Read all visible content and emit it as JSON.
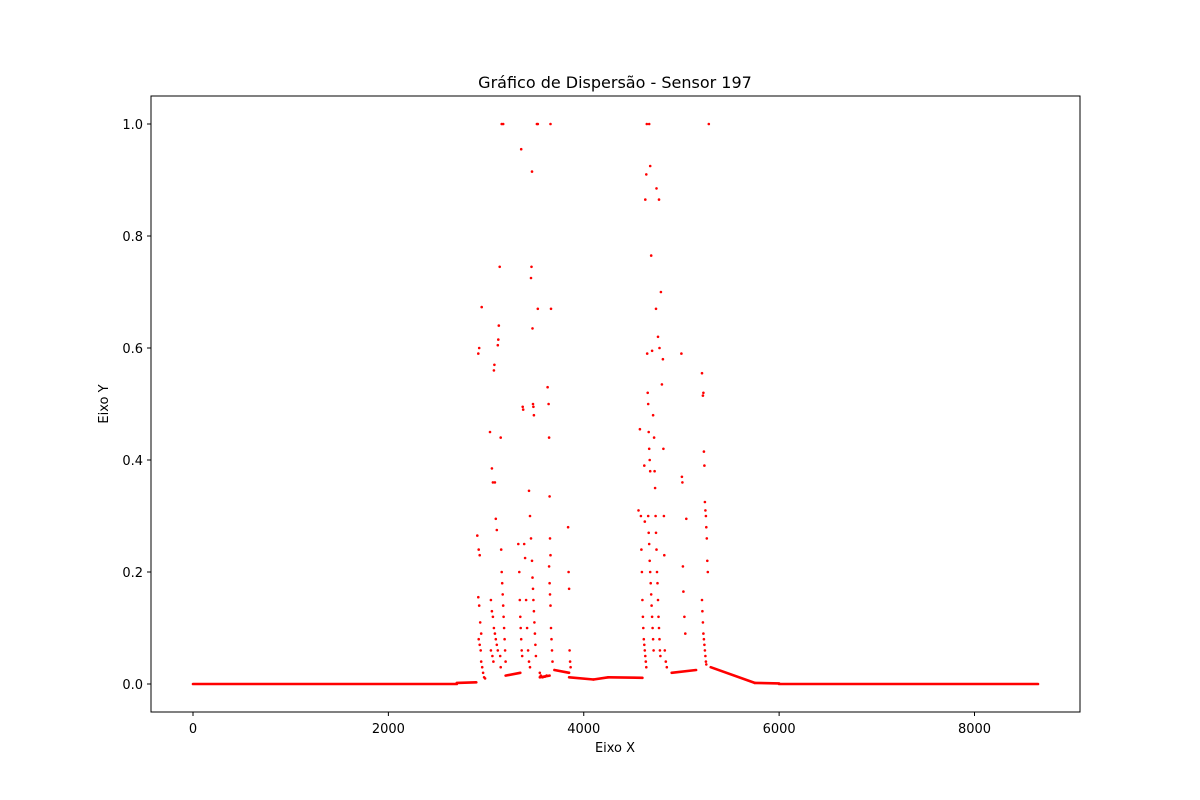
{
  "chart_data": {
    "type": "scatter",
    "title": "Gráfico de Dispersão - Sensor 197",
    "xlabel": "Eixo X",
    "ylabel": "Eixo Y",
    "xlim": [
      -430,
      9080
    ],
    "ylim": [
      -0.05,
      1.05
    ],
    "xticks": [
      0,
      2000,
      4000,
      6000,
      8000
    ],
    "xtick_labels": [
      "0",
      "2000",
      "4000",
      "6000",
      "8000"
    ],
    "yticks": [
      0.0,
      0.2,
      0.4,
      0.6,
      0.8,
      1.0
    ],
    "ytick_labels": [
      "0.0",
      "0.2",
      "0.4",
      "0.6",
      "0.8",
      "1.0"
    ],
    "grid": false,
    "marker_color": "#ff0000",
    "baseline_segments": [
      {
        "x": [
          0,
          2700
        ],
        "y": [
          0.0,
          0.0
        ]
      },
      {
        "x": [
          2700,
          2900
        ],
        "y": [
          0.002,
          0.003
        ]
      },
      {
        "x": [
          3200,
          3350
        ],
        "y": [
          0.015,
          0.02
        ]
      },
      {
        "x": [
          3550,
          3650
        ],
        "y": [
          0.012,
          0.015
        ]
      },
      {
        "x": [
          3700,
          3850
        ],
        "y": [
          0.025,
          0.02
        ]
      },
      {
        "x": [
          3850,
          4100
        ],
        "y": [
          0.012,
          0.008
        ]
      },
      {
        "x": [
          4100,
          4250
        ],
        "y": [
          0.008,
          0.012
        ]
      },
      {
        "x": [
          4250,
          4600
        ],
        "y": [
          0.012,
          0.011
        ]
      },
      {
        "x": [
          4900,
          5150
        ],
        "y": [
          0.02,
          0.025
        ]
      },
      {
        "x": [
          5300,
          5750
        ],
        "y": [
          0.03,
          0.002
        ]
      },
      {
        "x": [
          5750,
          6000
        ],
        "y": [
          0.002,
          0.001
        ]
      },
      {
        "x": [
          6000,
          8650
        ],
        "y": [
          0.0,
          0.0
        ]
      }
    ],
    "points": [
      [
        2910,
        0.265
      ],
      [
        2920,
        0.59
      ],
      [
        2930,
        0.6
      ],
      [
        2925,
        0.24
      ],
      [
        2935,
        0.23
      ],
      [
        2920,
        0.155
      ],
      [
        2930,
        0.14
      ],
      [
        2940,
        0.11
      ],
      [
        2950,
        0.09
      ],
      [
        2925,
        0.08
      ],
      [
        2935,
        0.07
      ],
      [
        2945,
        0.06
      ],
      [
        2950,
        0.04
      ],
      [
        2960,
        0.03
      ],
      [
        2970,
        0.02
      ],
      [
        2980,
        0.012
      ],
      [
        2990,
        0.01
      ],
      [
        2955,
        0.673
      ],
      [
        3040,
        0.45
      ],
      [
        3060,
        0.385
      ],
      [
        3070,
        0.36
      ],
      [
        3080,
        0.56
      ],
      [
        3085,
        0.57
      ],
      [
        3090,
        0.36
      ],
      [
        3050,
        0.15
      ],
      [
        3060,
        0.13
      ],
      [
        3070,
        0.12
      ],
      [
        3080,
        0.1
      ],
      [
        3090,
        0.09
      ],
      [
        3100,
        0.08
      ],
      [
        3110,
        0.07
      ],
      [
        3120,
        0.06
      ],
      [
        3050,
        0.06
      ],
      [
        3065,
        0.05
      ],
      [
        3075,
        0.04
      ],
      [
        3100,
        0.295
      ],
      [
        3110,
        0.275
      ],
      [
        3120,
        0.605
      ],
      [
        3125,
        0.615
      ],
      [
        3130,
        0.64
      ],
      [
        3140,
        0.745
      ],
      [
        3150,
        0.44
      ],
      [
        3155,
        0.24
      ],
      [
        3160,
        0.2
      ],
      [
        3165,
        0.18
      ],
      [
        3170,
        0.16
      ],
      [
        3175,
        0.14
      ],
      [
        3180,
        0.12
      ],
      [
        3185,
        0.1
      ],
      [
        3190,
        0.08
      ],
      [
        3195,
        0.06
      ],
      [
        3200,
        0.04
      ],
      [
        3145,
        0.05
      ],
      [
        3150,
        0.03
      ],
      [
        3160,
        1.0
      ],
      [
        3175,
        1.0
      ],
      [
        3330,
        0.25
      ],
      [
        3340,
        0.2
      ],
      [
        3345,
        0.15
      ],
      [
        3350,
        0.12
      ],
      [
        3355,
        0.1
      ],
      [
        3360,
        0.08
      ],
      [
        3365,
        0.06
      ],
      [
        3370,
        0.05
      ],
      [
        3360,
        0.955
      ],
      [
        3375,
        0.495
      ],
      [
        3380,
        0.49
      ],
      [
        3390,
        0.25
      ],
      [
        3400,
        0.225
      ],
      [
        3410,
        0.15
      ],
      [
        3420,
        0.1
      ],
      [
        3430,
        0.06
      ],
      [
        3440,
        0.04
      ],
      [
        3450,
        0.03
      ],
      [
        3440,
        0.345
      ],
      [
        3450,
        0.3
      ],
      [
        3460,
        0.725
      ],
      [
        3465,
        0.745
      ],
      [
        3470,
        0.915
      ],
      [
        3475,
        0.635
      ],
      [
        3480,
        0.5
      ],
      [
        3485,
        0.495
      ],
      [
        3490,
        0.48
      ],
      [
        3460,
        0.26
      ],
      [
        3470,
        0.22
      ],
      [
        3475,
        0.19
      ],
      [
        3480,
        0.17
      ],
      [
        3485,
        0.15
      ],
      [
        3490,
        0.13
      ],
      [
        3495,
        0.11
      ],
      [
        3500,
        0.09
      ],
      [
        3505,
        0.07
      ],
      [
        3510,
        0.05
      ],
      [
        3520,
        1.0
      ],
      [
        3530,
        1.0
      ],
      [
        3530,
        0.67
      ],
      [
        3550,
        0.02
      ],
      [
        3560,
        0.015
      ],
      [
        3580,
        0.012
      ],
      [
        3600,
        0.013
      ],
      [
        3620,
        0.015
      ],
      [
        3630,
        0.53
      ],
      [
        3640,
        0.5
      ],
      [
        3645,
        0.44
      ],
      [
        3650,
        0.335
      ],
      [
        3655,
        0.26
      ],
      [
        3660,
        0.23
      ],
      [
        3645,
        0.21
      ],
      [
        3650,
        0.18
      ],
      [
        3655,
        0.16
      ],
      [
        3660,
        0.14
      ],
      [
        3665,
        0.1
      ],
      [
        3670,
        0.08
      ],
      [
        3675,
        0.06
      ],
      [
        3680,
        0.04
      ],
      [
        3660,
        1.0
      ],
      [
        3665,
        0.67
      ],
      [
        3840,
        0.28
      ],
      [
        3845,
        0.2
      ],
      [
        3850,
        0.17
      ],
      [
        3855,
        0.06
      ],
      [
        3860,
        0.04
      ],
      [
        3865,
        0.03
      ],
      [
        4560,
        0.31
      ],
      [
        4575,
        0.455
      ],
      [
        4585,
        0.3
      ],
      [
        4590,
        0.24
      ],
      [
        4595,
        0.2
      ],
      [
        4600,
        0.15
      ],
      [
        4605,
        0.12
      ],
      [
        4610,
        0.1
      ],
      [
        4615,
        0.08
      ],
      [
        4620,
        0.07
      ],
      [
        4625,
        0.06
      ],
      [
        4630,
        0.05
      ],
      [
        4635,
        0.04
      ],
      [
        4640,
        0.03
      ],
      [
        4620,
        0.39
      ],
      [
        4625,
        0.29
      ],
      [
        4630,
        0.865
      ],
      [
        4640,
        0.91
      ],
      [
        4645,
        1.0
      ],
      [
        4650,
        0.59
      ],
      [
        4655,
        0.52
      ],
      [
        4660,
        0.5
      ],
      [
        4665,
        0.45
      ],
      [
        4670,
        0.42
      ],
      [
        4675,
        0.4
      ],
      [
        4680,
        0.38
      ],
      [
        4660,
        0.3
      ],
      [
        4665,
        0.27
      ],
      [
        4670,
        0.25
      ],
      [
        4675,
        0.22
      ],
      [
        4680,
        0.2
      ],
      [
        4685,
        0.18
      ],
      [
        4690,
        0.16
      ],
      [
        4695,
        0.14
      ],
      [
        4700,
        0.12
      ],
      [
        4705,
        0.1
      ],
      [
        4710,
        0.08
      ],
      [
        4715,
        0.06
      ],
      [
        4670,
        1.0
      ],
      [
        4680,
        0.925
      ],
      [
        4690,
        0.765
      ],
      [
        4700,
        0.595
      ],
      [
        4710,
        0.48
      ],
      [
        4720,
        0.44
      ],
      [
        4725,
        0.38
      ],
      [
        4730,
        0.35
      ],
      [
        4735,
        0.3
      ],
      [
        4740,
        0.27
      ],
      [
        4745,
        0.24
      ],
      [
        4750,
        0.2
      ],
      [
        4755,
        0.18
      ],
      [
        4760,
        0.15
      ],
      [
        4765,
        0.12
      ],
      [
        4770,
        0.1
      ],
      [
        4775,
        0.08
      ],
      [
        4780,
        0.06
      ],
      [
        4785,
        0.05
      ],
      [
        4740,
        0.67
      ],
      [
        4745,
        0.885
      ],
      [
        4760,
        0.62
      ],
      [
        4770,
        0.865
      ],
      [
        4775,
        0.6
      ],
      [
        4800,
        0.535
      ],
      [
        4810,
        0.58
      ],
      [
        4815,
        0.42
      ],
      [
        4820,
        0.3
      ],
      [
        4825,
        0.23
      ],
      [
        4830,
        0.06
      ],
      [
        4840,
        0.04
      ],
      [
        4850,
        0.03
      ],
      [
        4790,
        0.7
      ],
      [
        5000,
        0.59
      ],
      [
        5005,
        0.37
      ],
      [
        5010,
        0.36
      ],
      [
        5015,
        0.21
      ],
      [
        5020,
        0.165
      ],
      [
        5030,
        0.12
      ],
      [
        5040,
        0.09
      ],
      [
        5050,
        0.295
      ],
      [
        5210,
        0.555
      ],
      [
        5220,
        0.515
      ],
      [
        5225,
        0.52
      ],
      [
        5230,
        0.415
      ],
      [
        5235,
        0.39
      ],
      [
        5240,
        0.325
      ],
      [
        5245,
        0.31
      ],
      [
        5250,
        0.3
      ],
      [
        5255,
        0.28
      ],
      [
        5260,
        0.26
      ],
      [
        5265,
        0.22
      ],
      [
        5270,
        0.2
      ],
      [
        5210,
        0.15
      ],
      [
        5215,
        0.13
      ],
      [
        5220,
        0.11
      ],
      [
        5225,
        0.09
      ],
      [
        5230,
        0.08
      ],
      [
        5235,
        0.07
      ],
      [
        5240,
        0.06
      ],
      [
        5245,
        0.05
      ],
      [
        5250,
        0.04
      ],
      [
        5255,
        0.035
      ],
      [
        5280,
        1.0
      ]
    ]
  }
}
